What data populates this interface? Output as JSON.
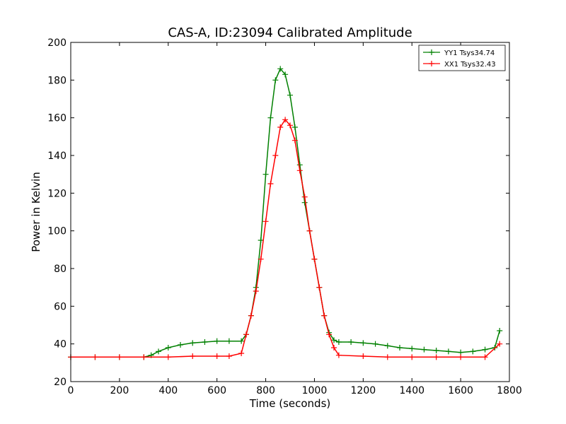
{
  "chart_data": {
    "type": "line",
    "title": "CAS-A, ID:23094 Calibrated Amplitude",
    "xlabel": "Time (seconds)",
    "ylabel": "Power in Kelvin",
    "xlim": [
      0,
      1800
    ],
    "ylim": [
      20,
      200
    ],
    "xticks": [
      0,
      200,
      400,
      600,
      800,
      1000,
      1200,
      1400,
      1600,
      1800
    ],
    "yticks": [
      20,
      40,
      60,
      80,
      100,
      120,
      140,
      160,
      180,
      200
    ],
    "grid": false,
    "legend_position": "top-right",
    "marker": "+",
    "series": [
      {
        "name": "YY1 Tsys34.74",
        "color": "#008000",
        "x": [
          0,
          100,
          200,
          300,
          330,
          360,
          400,
          450,
          500,
          550,
          600,
          650,
          700,
          720,
          740,
          760,
          780,
          800,
          820,
          840,
          860,
          880,
          900,
          920,
          940,
          960,
          980,
          1000,
          1020,
          1040,
          1060,
          1080,
          1100,
          1150,
          1200,
          1250,
          1300,
          1350,
          1400,
          1450,
          1500,
          1550,
          1600,
          1650,
          1700,
          1740,
          1760
        ],
        "y": [
          33,
          33,
          33,
          33,
          34,
          36,
          38,
          39.5,
          40.5,
          41,
          41.5,
          41.5,
          41.5,
          45,
          55,
          70,
          95,
          130,
          160,
          180,
          186,
          183,
          172,
          155,
          135,
          115,
          100,
          85,
          70,
          55,
          46,
          42,
          41,
          41,
          40.5,
          40,
          39,
          38,
          37.5,
          37,
          36.5,
          36,
          35.5,
          36,
          37,
          38,
          47
        ]
      },
      {
        "name": "XX1 Tsys32.43",
        "color": "#ff0000",
        "x": [
          0,
          100,
          200,
          300,
          400,
          500,
          600,
          650,
          700,
          720,
          740,
          760,
          780,
          800,
          820,
          840,
          860,
          880,
          900,
          920,
          940,
          960,
          980,
          1000,
          1020,
          1040,
          1060,
          1080,
          1100,
          1200,
          1300,
          1400,
          1500,
          1600,
          1700,
          1760
        ],
        "y": [
          33,
          33,
          33,
          33,
          33,
          33.5,
          33.5,
          33.5,
          35,
          45,
          55,
          68,
          85,
          105,
          125,
          140,
          155,
          159,
          156,
          148,
          132,
          118,
          100,
          85,
          70,
          55,
          45,
          38,
          34,
          33.5,
          33,
          33,
          33,
          33,
          33,
          40
        ]
      }
    ]
  }
}
